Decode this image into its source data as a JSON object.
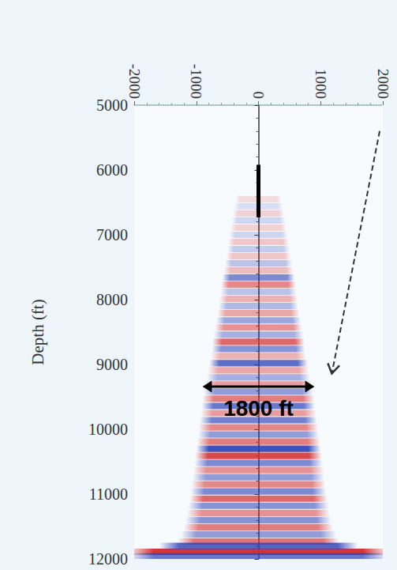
{
  "chart_data": {
    "type": "seismic",
    "ylabel": "Depth (ft)",
    "xlim": [
      -2000,
      2000
    ],
    "xticks": [
      -2000,
      -1000,
      0,
      1000,
      2000
    ],
    "ylim": [
      5000,
      12000
    ],
    "yticks": [
      5000,
      6000,
      7000,
      8000,
      9000,
      10000,
      11000,
      12000
    ],
    "grid": false,
    "series": [
      {
        "color": "#d42a2a",
        "depth": [
          6450,
          6670,
          6890,
          7110,
          7330,
          7550,
          7770,
          7990,
          8210,
          8430,
          8650,
          8870,
          9090,
          9310,
          9530,
          9750,
          9970,
          10190,
          10410,
          10630,
          10850,
          11070,
          11290,
          11510,
          11730,
          11890
        ],
        "half_width": [
          370,
          410,
          450,
          490,
          520,
          560,
          600,
          630,
          660,
          700,
          740,
          770,
          810,
          860,
          900,
          930,
          960,
          990,
          1020,
          1050,
          1080,
          1110,
          1150,
          1200,
          1300,
          2100
        ],
        "amplitude": [
          0.15,
          0.2,
          0.2,
          0.25,
          0.25,
          0.3,
          0.55,
          0.35,
          0.4,
          0.5,
          0.7,
          0.35,
          0.4,
          0.45,
          0.6,
          0.45,
          0.55,
          0.6,
          0.85,
          0.5,
          0.55,
          0.7,
          0.5,
          0.6,
          0.65,
          0.95
        ]
      },
      {
        "color": "#2a3fb5",
        "depth": [
          6560,
          6780,
          7000,
          7220,
          7440,
          7660,
          7880,
          8100,
          8320,
          8540,
          8760,
          8980,
          9200,
          9420,
          9640,
          9860,
          10080,
          10300,
          10520,
          10740,
          10960,
          11180,
          11400,
          11620,
          11800,
          11960
        ],
        "half_width": [
          390,
          430,
          470,
          500,
          540,
          580,
          610,
          640,
          680,
          720,
          750,
          790,
          830,
          880,
          910,
          940,
          970,
          1000,
          1030,
          1060,
          1090,
          1130,
          1170,
          1250,
          1600,
          2100
        ],
        "amplitude": [
          0.15,
          0.2,
          0.2,
          0.25,
          0.3,
          0.6,
          0.3,
          0.35,
          0.45,
          0.4,
          0.55,
          0.75,
          0.4,
          0.5,
          0.7,
          0.65,
          0.5,
          0.9,
          0.6,
          0.5,
          0.6,
          0.55,
          0.55,
          0.5,
          0.8,
          0.7
        ]
      }
    ],
    "annotations": [
      {
        "text": "1800 ft",
        "x": [
          -900,
          900
        ],
        "y": 9340
      },
      {
        "x": [
          0,
          0
        ],
        "y": [
          5920,
          6730
        ]
      },
      {
        "x": [
          1950,
          1180
        ],
        "y": [
          5400,
          9140
        ],
        "line_style": "dashed"
      }
    ]
  }
}
